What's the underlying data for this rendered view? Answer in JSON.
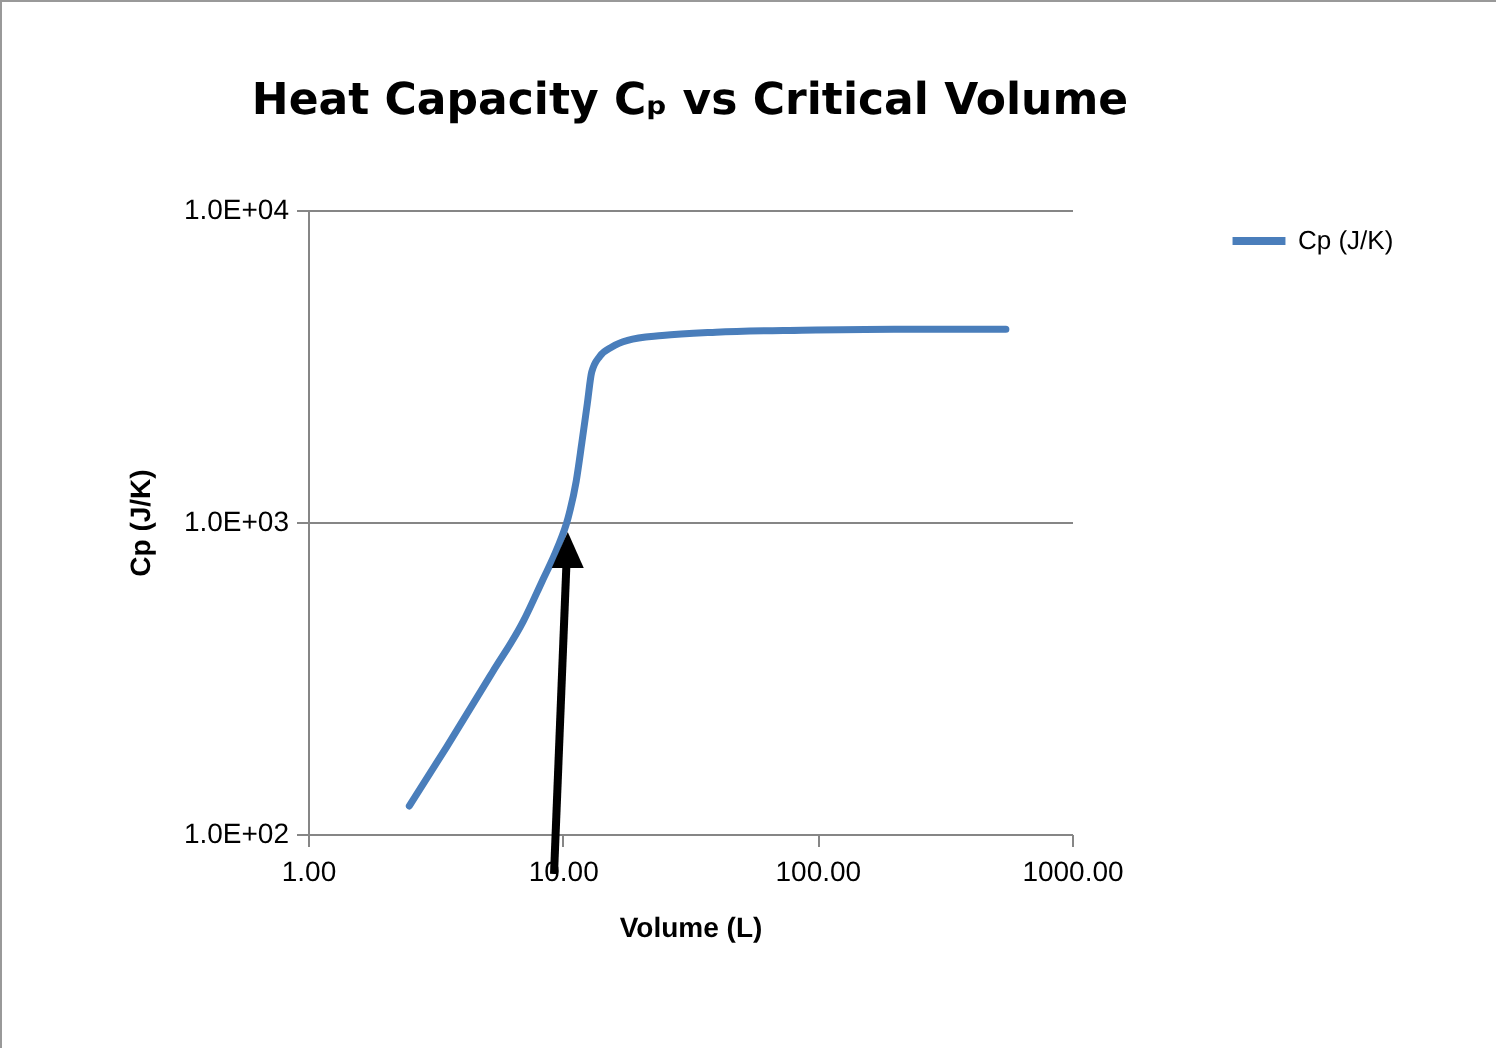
{
  "chart_data": {
    "type": "line",
    "title": "Heat Capacity Cₚ vs Critical Volume",
    "xlabel": "Volume (L)",
    "ylabel": "Cp  (J/K)",
    "series": [
      {
        "name": "Cp (J/K)",
        "color": "#4a7ebb",
        "x": [
          2.5,
          3.5,
          5.3,
          7,
          8.3,
          9.5,
          10.5,
          11.3,
          11.9,
          12.5,
          13,
          14,
          15.6,
          18,
          24.6,
          40,
          87,
          200,
          550
        ],
        "values": [
          123,
          190,
          330,
          480,
          645,
          820,
          1030,
          1350,
          1800,
          2400,
          3020,
          3400,
          3640,
          3820,
          3960,
          4060,
          4120,
          4150,
          4150
        ]
      }
    ],
    "xlim": [
      1,
      1000
    ],
    "xticks": [
      {
        "value": 1,
        "label": "1.00"
      },
      {
        "value": 10,
        "label": "10.00"
      },
      {
        "value": 100,
        "label": "100.00"
      },
      {
        "value": 1000,
        "label": "1000.00"
      }
    ],
    "ylim": [
      100,
      10000
    ],
    "yticks": [
      {
        "value": 100,
        "label": "1.0E+02"
      },
      {
        "value": 1000,
        "label": "1.0E+03"
      },
      {
        "value": 10000,
        "label": "1.0E+04"
      }
    ],
    "log": "xy",
    "grid": "y",
    "legend": "right",
    "marker": "none",
    "line_style": "solid"
  }
}
